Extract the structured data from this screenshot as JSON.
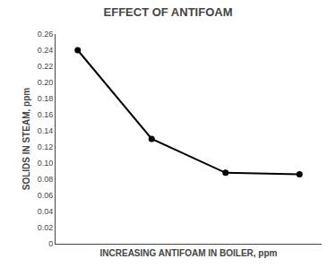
{
  "chart_data": {
    "type": "line",
    "title": "EFFECT OF ANTIFOAM",
    "xlabel": "INCREASING ANTIFOAM IN BOILER, ppm",
    "ylabel": "SOLIDS IN STEAM, ppm",
    "x": [
      1,
      2,
      3,
      4
    ],
    "values": [
      0.24,
      0.13,
      0.088,
      0.086
    ],
    "color": "#000000",
    "marker": "circle",
    "xlim": [
      0.7,
      4.3
    ],
    "xticks": [],
    "ylim": [
      0,
      0.26
    ],
    "yticks": [
      0,
      0.02,
      0.04,
      0.06,
      0.08,
      {
        "value": 0.1,
        "label": "0.10"
      },
      0.12,
      0.14,
      0.16,
      0.18,
      {
        "value": 0.2,
        "label": "0.20"
      },
      0.22,
      0.24,
      0.26
    ],
    "grid": false,
    "tick_labels": "y"
  }
}
